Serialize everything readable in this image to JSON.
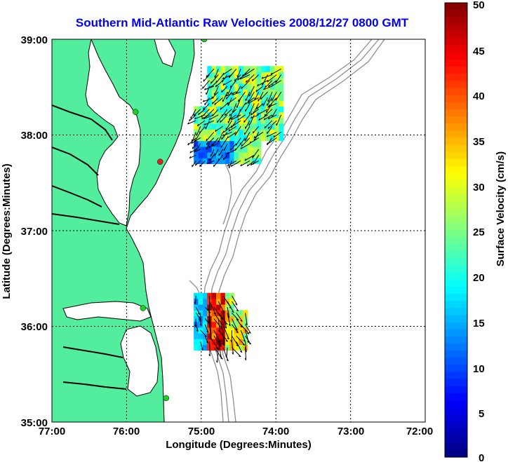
{
  "title": "Southern Mid-Atlantic Raw Velocities 2008/12/27 0800 GMT",
  "x_axis": {
    "label": "Longitude (Degrees:Minutes)",
    "ticks": [
      "77:00",
      "76:00",
      "75:00",
      "74:00",
      "73:00",
      "72:00"
    ]
  },
  "y_axis": {
    "label": "Latitude (Degrees:Minutes)",
    "ticks": [
      "39:00",
      "38:00",
      "37:00",
      "36:00",
      "35:00"
    ]
  },
  "colorbar": {
    "label": "Surface Velocity (cm/s)",
    "ticks": [
      "50",
      "45",
      "40",
      "35",
      "30",
      "25",
      "20",
      "15",
      "10",
      "5",
      "0"
    ],
    "min": 0,
    "max": 50,
    "colormap": "jet"
  },
  "colors": {
    "land": "#52ee9e",
    "ocean": "#ffffff",
    "coastline": "#000000",
    "bathymetry": "#909090",
    "title": "#0000ee",
    "station_active": "#22cc22",
    "station_alert": "#dd2222"
  },
  "map_extent": {
    "lon": [
      -77,
      -72
    ],
    "lat": [
      35,
      39
    ]
  },
  "stations": [
    {
      "lon": -74.96,
      "lat": 39.0,
      "status": "active"
    },
    {
      "lon": -75.88,
      "lat": 38.24,
      "status": "active"
    },
    {
      "lon": -75.55,
      "lat": 37.72,
      "status": "alert"
    },
    {
      "lon": -75.78,
      "lat": 36.19,
      "status": "active"
    },
    {
      "lon": -75.47,
      "lat": 35.25,
      "status": "active"
    }
  ],
  "velocity_regions": [
    {
      "name": "north",
      "lon": [
        -75.1,
        -73.9
      ],
      "lat": [
        37.7,
        38.7
      ],
      "typical_speed": 25,
      "direction_deg": 225
    },
    {
      "name": "south",
      "lon": [
        -75.1,
        -74.4
      ],
      "lat": [
        35.75,
        36.35
      ],
      "typical_speed": 30,
      "direction_deg": 160
    }
  ]
}
